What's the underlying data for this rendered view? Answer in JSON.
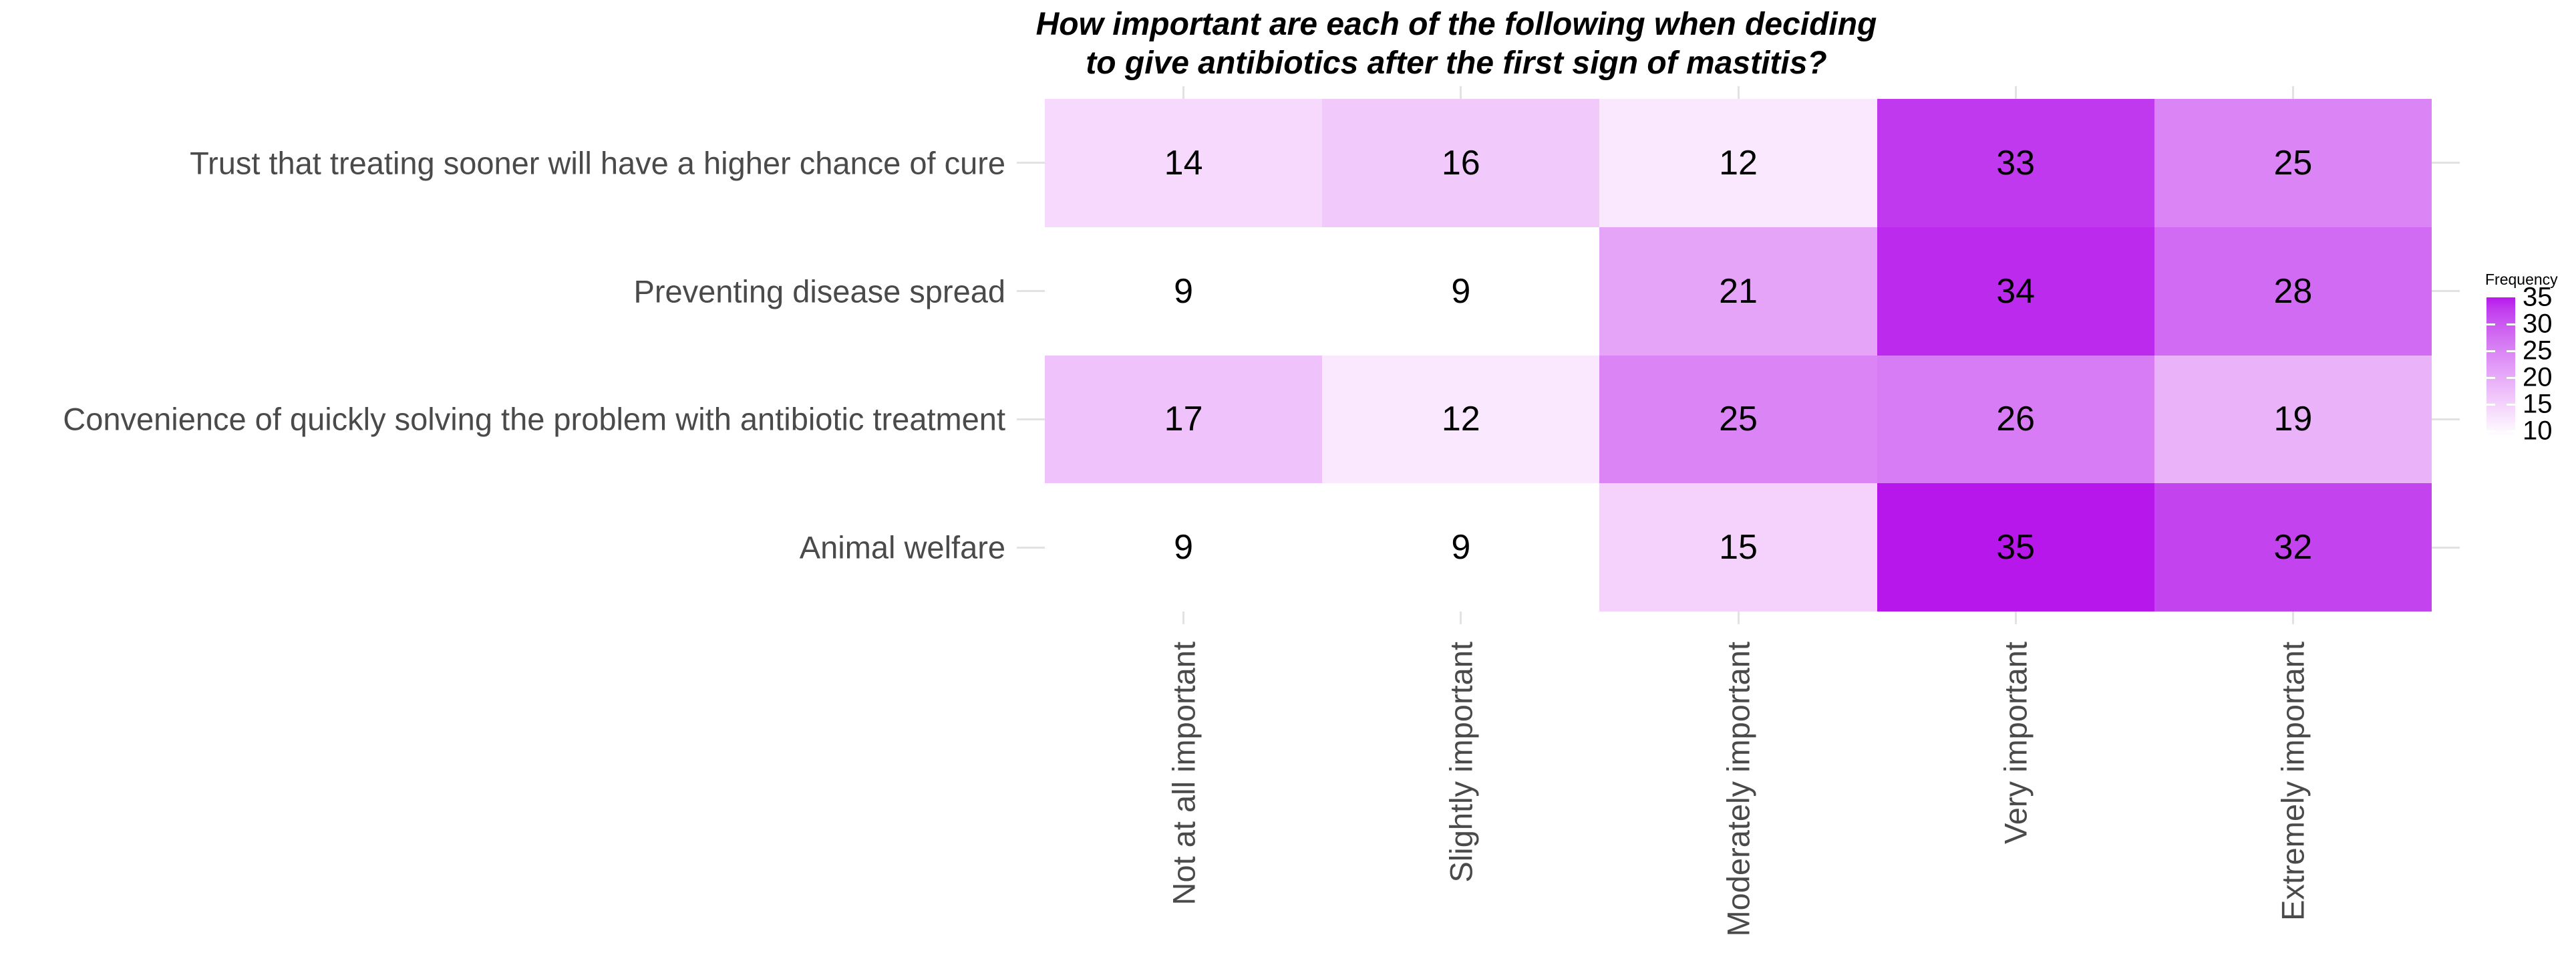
{
  "figure": {
    "title_line1": "How important are each of the following when deciding",
    "title_line2": "to give antibiotics after the first sign of mastitis?"
  },
  "chart_data": {
    "type": "heatmap",
    "title": "How important are each of the following when deciding to give antibiotics after the first sign of mastitis?",
    "rows": [
      "Trust that treating sooner will have a higher chance of cure",
      "Preventing disease spread",
      "Convenience of quickly solving the problem with antibiotic treatment",
      "Animal welfare"
    ],
    "columns": [
      "Not at all important",
      "Slightly important",
      "Moderately important",
      "Very important",
      "Extremely important"
    ],
    "values": [
      [
        14,
        16,
        12,
        33,
        25
      ],
      [
        9,
        9,
        21,
        34,
        28
      ],
      [
        17,
        12,
        25,
        26,
        19
      ],
      [
        9,
        9,
        15,
        35,
        32
      ]
    ],
    "legend": {
      "title": "Frequency",
      "ticks": [
        35,
        30,
        25,
        20,
        15,
        10
      ],
      "position": "right"
    },
    "scale": {
      "domain": [
        9,
        35
      ],
      "low": "#FFFFFF",
      "high": "#B817EC",
      "interpolation": "lab"
    },
    "grid": true,
    "theme": {
      "grid_color": "#E2E2E2",
      "axis_text_color": "#4A4A4A",
      "title_color": "#000000",
      "background": "#FFFFFF",
      "cell_text_color": "#000000"
    }
  }
}
